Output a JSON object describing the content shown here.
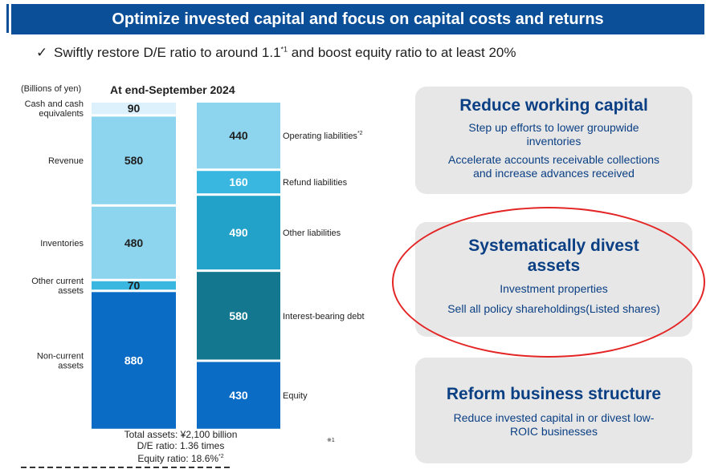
{
  "header": {
    "title": "Optimize invested capital and focus on capital costs and returns"
  },
  "subheadline": {
    "check": "✓",
    "text_before": "Swiftly restore D/E ratio to around 1.1",
    "note": "*1",
    "text_after": " and boost equity ratio to at least 20%"
  },
  "chart_data": {
    "type": "bar",
    "subtype": "stacked-balance-sheet",
    "title": "At end-September 2024",
    "unit_label": "(Billions of yen)",
    "series": [
      {
        "name": "",
        "segments": [
          {
            "label": "Cash and cash\nequivalents",
            "value": 90,
            "color": "#dcf1fb"
          },
          {
            "label": "Revenue",
            "value": 580,
            "color": "#8dd4ef"
          },
          {
            "label": "Inventories",
            "value": 480,
            "color": "#8dd4ef"
          },
          {
            "label": "Other current\nassets",
            "value": 70,
            "color": "#3ab7e1"
          },
          {
            "label": "Non-current\nassets",
            "value": 880,
            "color": "#0a6cc5"
          }
        ]
      },
      {
        "name": "",
        "segments": [
          {
            "label": "Operating liabilities",
            "note": "*2",
            "value": 440,
            "color": "#8dd4ef"
          },
          {
            "label": "Refund liabilities",
            "value": 160,
            "color": "#3ab7e1"
          },
          {
            "label": "Other liabilities",
            "value": 490,
            "color": "#22a2c8"
          },
          {
            "label": "Interest-bearing debt",
            "value": 580,
            "color": "#13788f"
          },
          {
            "label": "Equity",
            "value": 430,
            "color": "#0a6cc5"
          }
        ]
      }
    ],
    "totals": {
      "line1": "Total assets: ¥2,100 billion",
      "line2": "D/E ratio: 1.36 times",
      "line3": "Equity ratio: 18.6%",
      "line3_note": "*2"
    },
    "footnote_mark": "※1"
  },
  "panels": [
    {
      "title": "Reduce working capital",
      "items": [
        "Step up efforts to lower groupwide\ninventories",
        "Accelerate accounts receivable collections\nand increase advances received"
      ]
    },
    {
      "title": "Systematically divest\nassets",
      "items": [
        "Investment properties",
        "Sell all policy shareholdings(Listed shares)"
      ]
    },
    {
      "title": "Reform business structure",
      "items": [
        "Reduce invested capital in or divest low-\nROIC businesses"
      ]
    }
  ],
  "colors": {
    "brand": "#0a4f97",
    "panel_text": "#0a3f84",
    "panel_bg": "#e7e7e7",
    "highlight": "#e42525"
  }
}
